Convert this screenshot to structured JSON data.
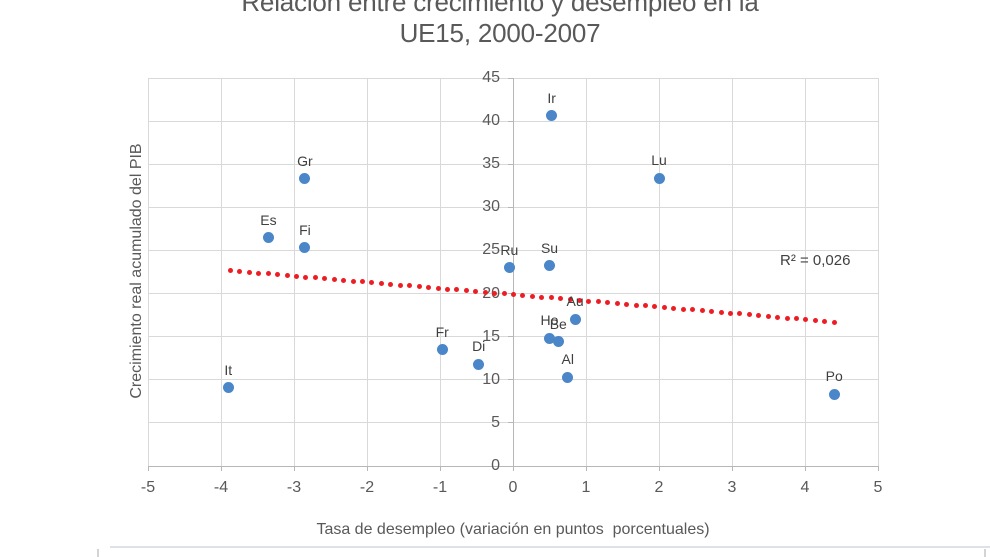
{
  "chart_data": {
    "type": "scatter",
    "title_lines": [
      "Relación entre crecimiento y desempleo en la",
      "UE15, 2000-2007"
    ],
    "xlabel": "Tasa de desempleo (variación en puntos  porcentuales)",
    "ylabel": "Crecimiento real acumulado del PIB",
    "xlim": [
      -5,
      5
    ],
    "ylim": [
      0,
      45
    ],
    "x_ticks": [
      -5,
      -4,
      -3,
      -2,
      -1,
      0,
      1,
      2,
      3,
      4,
      5
    ],
    "y_ticks": [
      0,
      5,
      10,
      15,
      20,
      25,
      30,
      35,
      40,
      45
    ],
    "grid": true,
    "legend": "none",
    "points": [
      {
        "label": "It",
        "x": -3.9,
        "y": 9.1
      },
      {
        "label": "Es",
        "x": -3.35,
        "y": 26.5
      },
      {
        "label": "Gr",
        "x": -2.85,
        "y": 33.3
      },
      {
        "label": "Fi",
        "x": -2.85,
        "y": 25.3
      },
      {
        "label": "Fr",
        "x": -0.97,
        "y": 13.5
      },
      {
        "label": "Di",
        "x": -0.47,
        "y": 11.8
      },
      {
        "label": "Ru",
        "x": -0.05,
        "y": 23.0
      },
      {
        "label": "Su",
        "x": 0.5,
        "y": 23.2
      },
      {
        "label": "Ir",
        "x": 0.53,
        "y": 40.6
      },
      {
        "label": "Lu",
        "x": 2.0,
        "y": 33.4
      },
      {
        "label": "Au",
        "x": 0.85,
        "y": 17.0
      },
      {
        "label": "Ho",
        "x": 0.5,
        "y": 14.8
      },
      {
        "label": "Be",
        "x": 0.62,
        "y": 14.4
      },
      {
        "label": "Al",
        "x": 0.75,
        "y": 10.3
      },
      {
        "label": "Po",
        "x": 4.4,
        "y": 8.3
      }
    ],
    "trendline": {
      "x1": -3.87,
      "y1": 22.65,
      "x2": 4.4,
      "y2": 16.7,
      "style": "dotted",
      "r2": 0.026,
      "r2_label": "R² = 0,026"
    },
    "colors": {
      "point": "#4a86c8",
      "trend": "#ee1d23",
      "grid": "#d9d9d9",
      "axis": "#b7b7b7",
      "tick_text": "#595959",
      "title_text": "#595959",
      "data_label_text": "#3f3f3f"
    }
  }
}
